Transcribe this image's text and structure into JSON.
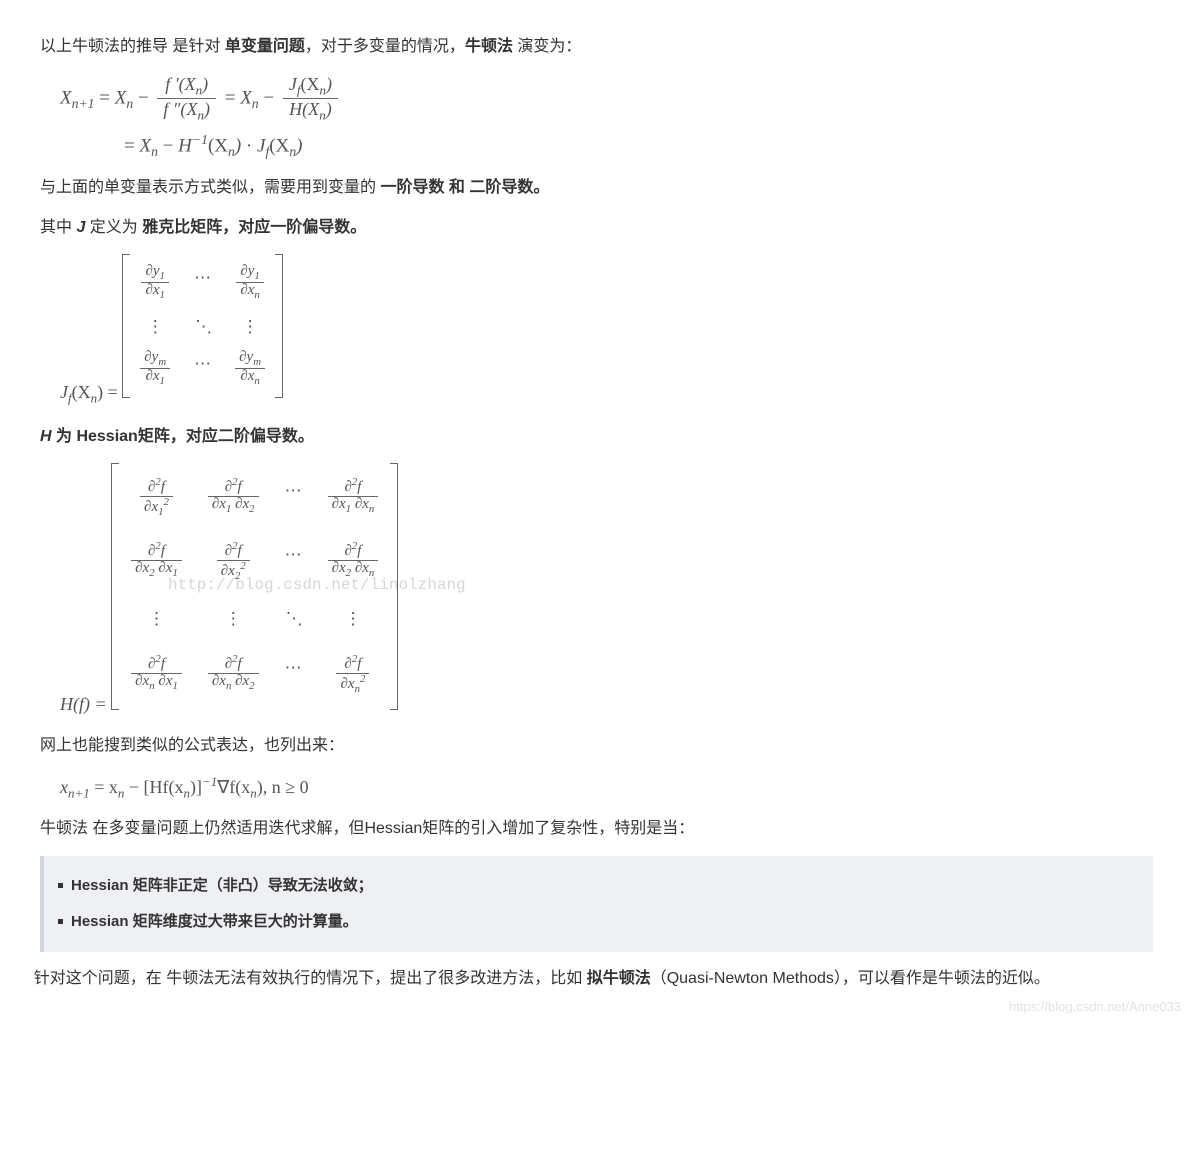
{
  "p1": {
    "t1": "以上牛顿法的推导 是针对 ",
    "b1": "单变量问题",
    "t2": "，对于多变量的情况，",
    "b2": "牛顿法",
    "t3": " 演变为："
  },
  "p2": {
    "t1": "与上面的单变量表示方式类似，需要用到变量的 ",
    "b1": "一阶导数 和 二阶导数。"
  },
  "p3": {
    "t1": "其中 ",
    "bi": "J",
    "t2": " 定义为 ",
    "b1": "雅克比矩阵，对应一阶偏导数。"
  },
  "p4": {
    "bi": "H",
    "t1": " 为 Hessian矩阵，对应二阶偏导数。"
  },
  "p5": "网上也能搜到类似的公式表达，也列出来：",
  "p6": "牛顿法 在多变量问题上仍然适用迭代求解，但Hessian矩阵的引入增加了复杂性，特别是当：",
  "q1": "Hessian 矩阵非正定（非凸）导致无法收敛；",
  "q2": "Hessian 矩阵维度过大带来巨大的计算量。",
  "p7": {
    "t1": "针对这个问题，在 牛顿法无法有效执行的情况下，提出了很多改进方法，比如 ",
    "b1": "拟牛顿法",
    "t2": "（Quasi-Newton Methods），可以看作是牛顿法的近似。"
  },
  "eq1": {
    "lhs": "X",
    "lhs_sub": "n+1",
    "Xn": "X",
    "Xn_sub": "n",
    "fprime_num": "f ′(X",
    "fprime_num_sub": "n",
    "fprime_num_close": ")",
    "fprime_den": "f ″(X",
    "fprime_den_sub": "n",
    "fprime_den_close": ")",
    "Jf": "J",
    "Jf_sub": "f",
    "Jf_arg": "(X",
    "Jf_arg_sub": "n",
    "Jf_arg_close": ")",
    "H": "H(X",
    "H_sub": "n",
    "H_close": ")",
    "Hinv": "H",
    "Hinv_sup": "−1",
    "Hinv_arg": "(X",
    "Hinv_arg_sub": "n",
    "Hinv_arg_close": ")",
    "dot": " · "
  },
  "jacobian": {
    "lhs": "J",
    "lhs_sub": "f",
    "lhs_arg": "(X",
    "lhs_arg_sub": "n",
    "lhs_arg_close": ") = ",
    "c11n": "∂y",
    "c11ns": "1",
    "c11d": "∂x",
    "c11ds": "1",
    "c13n": "∂y",
    "c13ns": "1",
    "c13d": "∂x",
    "c13ds": "n",
    "c31n": "∂y",
    "c31ns": "m",
    "c31d": "∂x",
    "c31ds": "1",
    "c33n": "∂y",
    "c33ns": "m",
    "c33d": "∂x",
    "c33ds": "n",
    "hdots": "⋯",
    "vdots": "⋮",
    "ddots": "⋱"
  },
  "hessian": {
    "lhs": "H(f) = ",
    "d2f": "∂",
    "d2f_sup": "2",
    "d2f_f": "f",
    "dx": "∂x",
    "hdots": "⋯",
    "vdots": "⋮",
    "ddots": "⋱",
    "watermark": "http://blog.csdn.net/linolzhang"
  },
  "eq2": {
    "text_pre": "x",
    "sub_np1": "n+1",
    "text_eq": " = x",
    "sub_n": "n",
    "text_mid1": " − [Hf(x",
    "sub_n2": "n",
    "text_mid2": ")]",
    "sup_neg1": "−1",
    "text_grad": "∇f(x",
    "sub_n3": "n",
    "text_close": "), n ≥ 0"
  },
  "colors": {
    "text": "#333333",
    "formula": "#555555",
    "quote_bg": "#eef0f4",
    "quote_border": "#d2d6dc",
    "watermark": "#d6d6d6",
    "corner_wm": "#e2e2e2"
  },
  "corner_watermark": "https://blog.csdn.net/Anne033"
}
